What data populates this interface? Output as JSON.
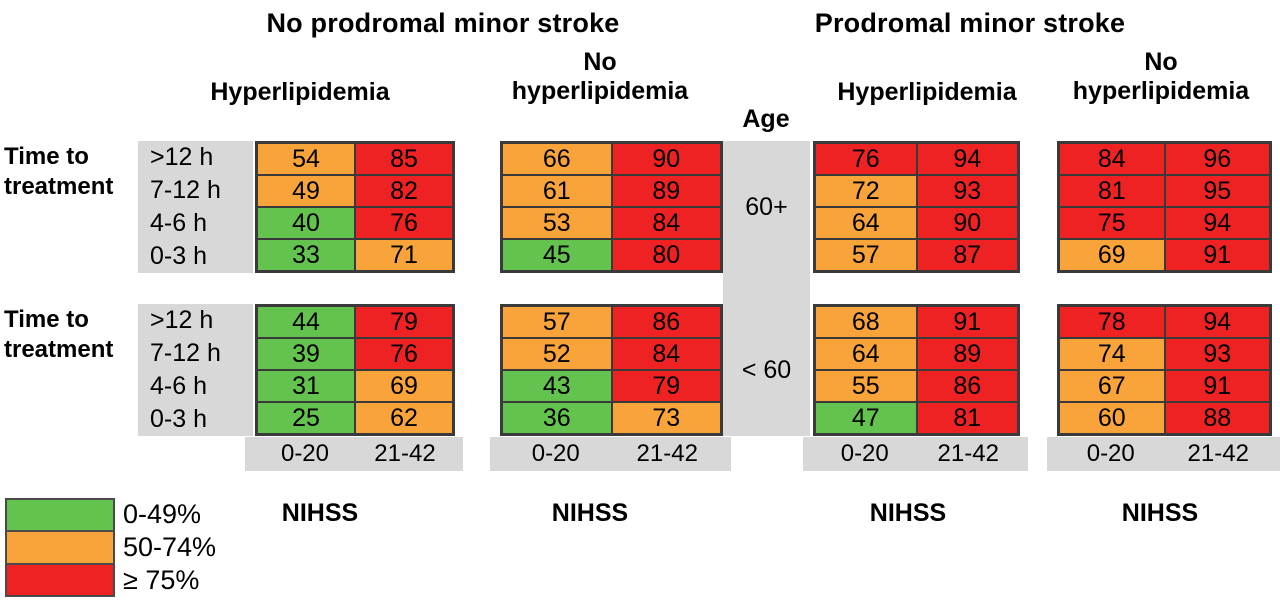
{
  "figure": {
    "group_titles": [
      "No prodromal minor stroke",
      "Prodromal minor stroke"
    ],
    "subgroups": {
      "hyperlipidemia": "Hyperlipidemia",
      "no_hyperlipidemia": [
        "No",
        "hyperlipidemia"
      ]
    },
    "age_header": "Age",
    "time_label": [
      "Time to",
      "treatment"
    ],
    "nihss_label": "NIHSS"
  },
  "legend": {
    "items": [
      {
        "key": "g",
        "label": "0-49%",
        "color": "#64C24E"
      },
      {
        "key": "o",
        "label": "50-74%",
        "color": "#F9A33B"
      },
      {
        "key": "r",
        "label": "≥ 75%",
        "color": "#EE2223"
      }
    ]
  },
  "colors": {
    "panel_background_gray": "#D8D8D8",
    "grid_border": "#3a3a3a"
  },
  "chart_data": {
    "type": "heatmap",
    "rows_axis": "Time to treatment",
    "rows": [
      ">12 h",
      "7-12 h",
      "4-6 h",
      "0-3 h"
    ],
    "cols_axis": "NIHSS",
    "cols": [
      "0-20",
      "21-42"
    ],
    "age_groups": [
      "60+",
      "< 60"
    ],
    "legend_bins": [
      "0-49%",
      "50-74%",
      "≥ 75%"
    ],
    "panels": [
      {
        "age": "60+",
        "stroke_group": "No prodromal minor stroke",
        "lipid_group": "Hyperlipidemia",
        "values": [
          [
            54,
            85
          ],
          [
            49,
            82
          ],
          [
            40,
            76
          ],
          [
            33,
            71
          ]
        ],
        "colors": [
          [
            "o",
            "r"
          ],
          [
            "o",
            "r"
          ],
          [
            "g",
            "r"
          ],
          [
            "g",
            "o"
          ]
        ]
      },
      {
        "age": "60+",
        "stroke_group": "No prodromal minor stroke",
        "lipid_group": "No hyperlipidemia",
        "values": [
          [
            66,
            90
          ],
          [
            61,
            89
          ],
          [
            53,
            84
          ],
          [
            45,
            80
          ]
        ],
        "colors": [
          [
            "o",
            "r"
          ],
          [
            "o",
            "r"
          ],
          [
            "o",
            "r"
          ],
          [
            "g",
            "r"
          ]
        ]
      },
      {
        "age": "60+",
        "stroke_group": "Prodromal minor stroke",
        "lipid_group": "Hyperlipidemia",
        "values": [
          [
            76,
            94
          ],
          [
            72,
            93
          ],
          [
            64,
            90
          ],
          [
            57,
            87
          ]
        ],
        "colors": [
          [
            "r",
            "r"
          ],
          [
            "o",
            "r"
          ],
          [
            "o",
            "r"
          ],
          [
            "o",
            "r"
          ]
        ]
      },
      {
        "age": "60+",
        "stroke_group": "Prodromal minor stroke",
        "lipid_group": "No hyperlipidemia",
        "values": [
          [
            84,
            96
          ],
          [
            81,
            95
          ],
          [
            75,
            94
          ],
          [
            69,
            91
          ]
        ],
        "colors": [
          [
            "r",
            "r"
          ],
          [
            "r",
            "r"
          ],
          [
            "r",
            "r"
          ],
          [
            "o",
            "r"
          ]
        ]
      },
      {
        "age": "< 60",
        "stroke_group": "No prodromal minor stroke",
        "lipid_group": "Hyperlipidemia",
        "values": [
          [
            44,
            79
          ],
          [
            39,
            76
          ],
          [
            31,
            69
          ],
          [
            25,
            62
          ]
        ],
        "colors": [
          [
            "g",
            "r"
          ],
          [
            "g",
            "r"
          ],
          [
            "g",
            "o"
          ],
          [
            "g",
            "o"
          ]
        ]
      },
      {
        "age": "< 60",
        "stroke_group": "No prodromal minor stroke",
        "lipid_group": "No hyperlipidemia",
        "values": [
          [
            57,
            86
          ],
          [
            52,
            84
          ],
          [
            43,
            79
          ],
          [
            36,
            73
          ]
        ],
        "colors": [
          [
            "o",
            "r"
          ],
          [
            "o",
            "r"
          ],
          [
            "g",
            "r"
          ],
          [
            "g",
            "o"
          ]
        ]
      },
      {
        "age": "< 60",
        "stroke_group": "Prodromal minor stroke",
        "lipid_group": "Hyperlipidemia",
        "values": [
          [
            68,
            91
          ],
          [
            64,
            89
          ],
          [
            55,
            86
          ],
          [
            47,
            81
          ]
        ],
        "colors": [
          [
            "o",
            "r"
          ],
          [
            "o",
            "r"
          ],
          [
            "o",
            "r"
          ],
          [
            "g",
            "r"
          ]
        ]
      },
      {
        "age": "< 60",
        "stroke_group": "Prodromal minor stroke",
        "lipid_group": "No hyperlipidemia",
        "values": [
          [
            78,
            94
          ],
          [
            74,
            93
          ],
          [
            67,
            91
          ],
          [
            60,
            88
          ]
        ],
        "colors": [
          [
            "r",
            "r"
          ],
          [
            "o",
            "r"
          ],
          [
            "o",
            "r"
          ],
          [
            "o",
            "r"
          ]
        ]
      }
    ]
  }
}
